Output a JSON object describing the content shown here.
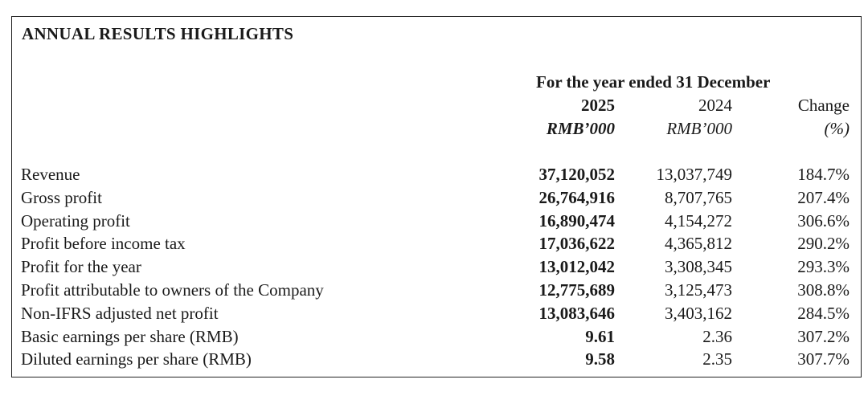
{
  "title": "ANNUAL RESULTS HIGHLIGHTS",
  "header": {
    "period": "For the year ended 31 December",
    "col_2025": "2025",
    "col_2024": "2024",
    "col_change": "Change",
    "unit_2025": "RMB’000",
    "unit_2024": "RMB’000",
    "unit_change": "(%)"
  },
  "rows": [
    {
      "label": "Revenue",
      "v2025": "37,120,052",
      "v2024": "13,037,749",
      "change": "184.7%"
    },
    {
      "label": "Gross profit",
      "v2025": "26,764,916",
      "v2024": "8,707,765",
      "change": "207.4%"
    },
    {
      "label": "Operating profit",
      "v2025": "16,890,474",
      "v2024": "4,154,272",
      "change": "306.6%"
    },
    {
      "label": "Profit before income tax",
      "v2025": "17,036,622",
      "v2024": "4,365,812",
      "change": "290.2%"
    },
    {
      "label": "Profit for the year",
      "v2025": "13,012,042",
      "v2024": "3,308,345",
      "change": "293.3%"
    },
    {
      "label": "Profit attributable to owners of the Company",
      "v2025": "12,775,689",
      "v2024": "3,125,473",
      "change": "308.8%"
    },
    {
      "label": "Non-IFRS adjusted net profit",
      "v2025": "13,083,646",
      "v2024": "3,403,162",
      "change": "284.5%"
    },
    {
      "label": "Basic earnings per share (RMB)",
      "v2025": "9.61",
      "v2024": "2.36",
      "change": "307.2%"
    },
    {
      "label": "Diluted earnings per share (RMB)",
      "v2025": "9.58",
      "v2024": "2.35",
      "change": "307.7%"
    }
  ]
}
